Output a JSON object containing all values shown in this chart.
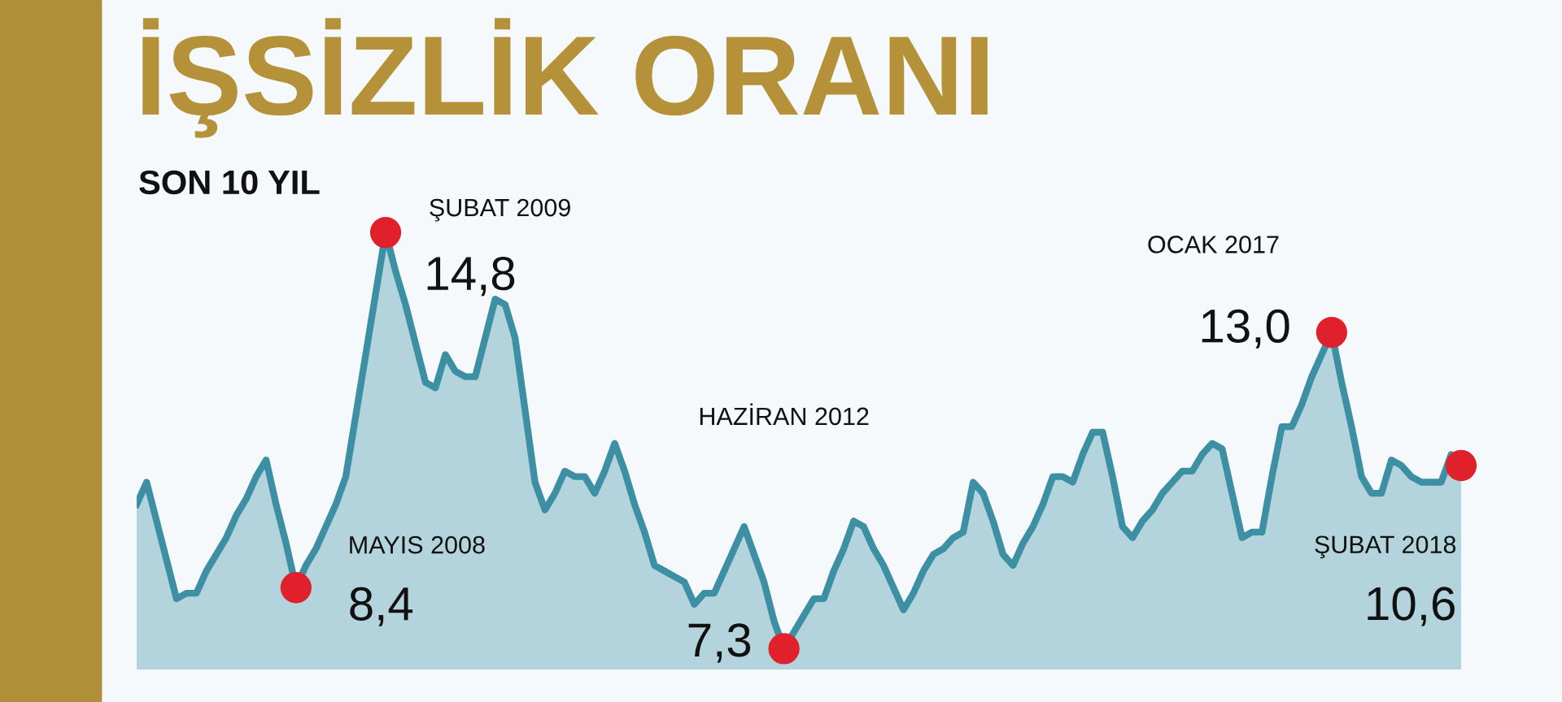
{
  "chart_data": {
    "type": "area",
    "title": "İŞSİZLİK ORANI",
    "subtitle": "SON 10 YIL",
    "legend": false,
    "tick_labels": false,
    "annotations": [
      "MAYIS 2008",
      "ŞUBAT 2009",
      "HAZİRAN 2012",
      "OCAK 2017",
      "ŞUBAT 2018"
    ],
    "categories": [
      null,
      null,
      null,
      null,
      null,
      null,
      null,
      null,
      null,
      null,
      null,
      null,
      null,
      null,
      null,
      null,
      null,
      null,
      null,
      null,
      null,
      null,
      null,
      null,
      null,
      null,
      null,
      null,
      null,
      null,
      null,
      null,
      null,
      null,
      null,
      null,
      null,
      null,
      null,
      null,
      null,
      null,
      null,
      null,
      null,
      null,
      null,
      null,
      null,
      null,
      null,
      null,
      null,
      null,
      null,
      null,
      null,
      null,
      null,
      null,
      null,
      null,
      null,
      null,
      null,
      null,
      null,
      null,
      null,
      null,
      null,
      null,
      null,
      null,
      null,
      null,
      null,
      null,
      null,
      null,
      null,
      null,
      null,
      null,
      null,
      null,
      null,
      null,
      null,
      null,
      null,
      null,
      null,
      null,
      null,
      null,
      null,
      null,
      null,
      null,
      null,
      null,
      null,
      null,
      null,
      null,
      null,
      null,
      null,
      null,
      null,
      null,
      null,
      null,
      null,
      null,
      null,
      null,
      null,
      null,
      null,
      null,
      null,
      null,
      null,
      null,
      null,
      null,
      null,
      null,
      null,
      null,
      null,
      null
    ],
    "series": [
      {
        "color": "#3d8fa3",
        "values": [
          9.9,
          10.3,
          9.6,
          8.9,
          8.2,
          8.3,
          8.3,
          8.7,
          9.0,
          9.3,
          9.7,
          10.0,
          10.4,
          10.7,
          9.9,
          9.2,
          8.4,
          8.8,
          9.1,
          9.5,
          9.9,
          10.4,
          11.5,
          12.6,
          13.7,
          14.8,
          14.1,
          13.5,
          12.8,
          12.1,
          12.0,
          12.6,
          12.3,
          12.2,
          12.2,
          12.9,
          13.6,
          13.5,
          12.9,
          11.6,
          10.3,
          9.8,
          10.1,
          10.5,
          10.4,
          10.4,
          10.1,
          10.5,
          11.0,
          10.5,
          9.9,
          9.4,
          8.8,
          8.7,
          8.6,
          8.5,
          8.1,
          8.3,
          8.3,
          8.7,
          9.1,
          9.5,
          9.0,
          8.5,
          7.8,
          7.3,
          7.6,
          7.9,
          8.2,
          8.2,
          8.7,
          9.1,
          9.6,
          9.5,
          9.1,
          8.8,
          8.4,
          8.0,
          8.3,
          8.7,
          9.0,
          9.1,
          9.3,
          9.4,
          10.3,
          10.1,
          9.6,
          9.0,
          8.8,
          9.2,
          9.5,
          9.9,
          10.4,
          10.4,
          10.3,
          10.8,
          11.2,
          11.2,
          10.4,
          9.5,
          9.3,
          9.6,
          9.8,
          10.1,
          10.3,
          10.5,
          10.5,
          10.8,
          11.0,
          10.9,
          10.1,
          9.3,
          9.4,
          9.4,
          10.4,
          11.3,
          11.3,
          11.7,
          12.2,
          12.6,
          13.0,
          12.1,
          11.3,
          10.4,
          10.1,
          10.1,
          10.7,
          10.6,
          10.4,
          10.3,
          10.3,
          10.3,
          10.8,
          10.6
        ],
        "value_labels": [
          null,
          null,
          null,
          null,
          null,
          null,
          null,
          null,
          null,
          null,
          null,
          null,
          null,
          null,
          null,
          null,
          "8,4",
          null,
          null,
          null,
          null,
          null,
          null,
          null,
          null,
          "14,8",
          null,
          null,
          null,
          null,
          null,
          null,
          null,
          null,
          null,
          null,
          null,
          null,
          null,
          null,
          null,
          null,
          null,
          null,
          null,
          null,
          null,
          null,
          null,
          null,
          null,
          null,
          null,
          null,
          null,
          null,
          null,
          null,
          null,
          null,
          null,
          null,
          null,
          null,
          null,
          "7,3",
          null,
          null,
          null,
          null,
          null,
          null,
          null,
          null,
          null,
          null,
          null,
          null,
          null,
          null,
          null,
          null,
          null,
          null,
          null,
          null,
          null,
          null,
          null,
          null,
          null,
          null,
          null,
          null,
          null,
          null,
          null,
          null,
          null,
          null,
          null,
          null,
          null,
          null,
          null,
          null,
          null,
          null,
          null,
          null,
          null,
          null,
          null,
          null,
          null,
          null,
          null,
          null,
          null,
          null,
          "13,0",
          null,
          null,
          null,
          null,
          null,
          null,
          null,
          null,
          null,
          null,
          null,
          null,
          "10,6"
        ],
        "colors": [
          null,
          null,
          null,
          null,
          null,
          null,
          null,
          null,
          null,
          null,
          null,
          null,
          null,
          null,
          null,
          null,
          "#e0202a",
          null,
          null,
          null,
          null,
          null,
          null,
          null,
          null,
          "#e0202a",
          null,
          null,
          null,
          null,
          null,
          null,
          null,
          null,
          null,
          null,
          null,
          null,
          null,
          null,
          null,
          null,
          null,
          null,
          null,
          null,
          null,
          null,
          null,
          null,
          null,
          null,
          null,
          null,
          null,
          null,
          null,
          null,
          null,
          null,
          null,
          null,
          null,
          null,
          null,
          "#e0202a",
          null,
          null,
          null,
          null,
          null,
          null,
          null,
          null,
          null,
          null,
          null,
          null,
          null,
          null,
          null,
          null,
          null,
          null,
          null,
          null,
          null,
          null,
          null,
          null,
          null,
          null,
          null,
          null,
          null,
          null,
          null,
          null,
          null,
          null,
          null,
          null,
          null,
          null,
          null,
          null,
          null,
          null,
          null,
          null,
          null,
          null,
          null,
          null,
          null,
          null,
          null,
          null,
          null,
          null,
          "#e0202a",
          null,
          null,
          null,
          null,
          null,
          null,
          null,
          null,
          null,
          null,
          null,
          null,
          "#e0202a"
        ]
      }
    ]
  }
}
